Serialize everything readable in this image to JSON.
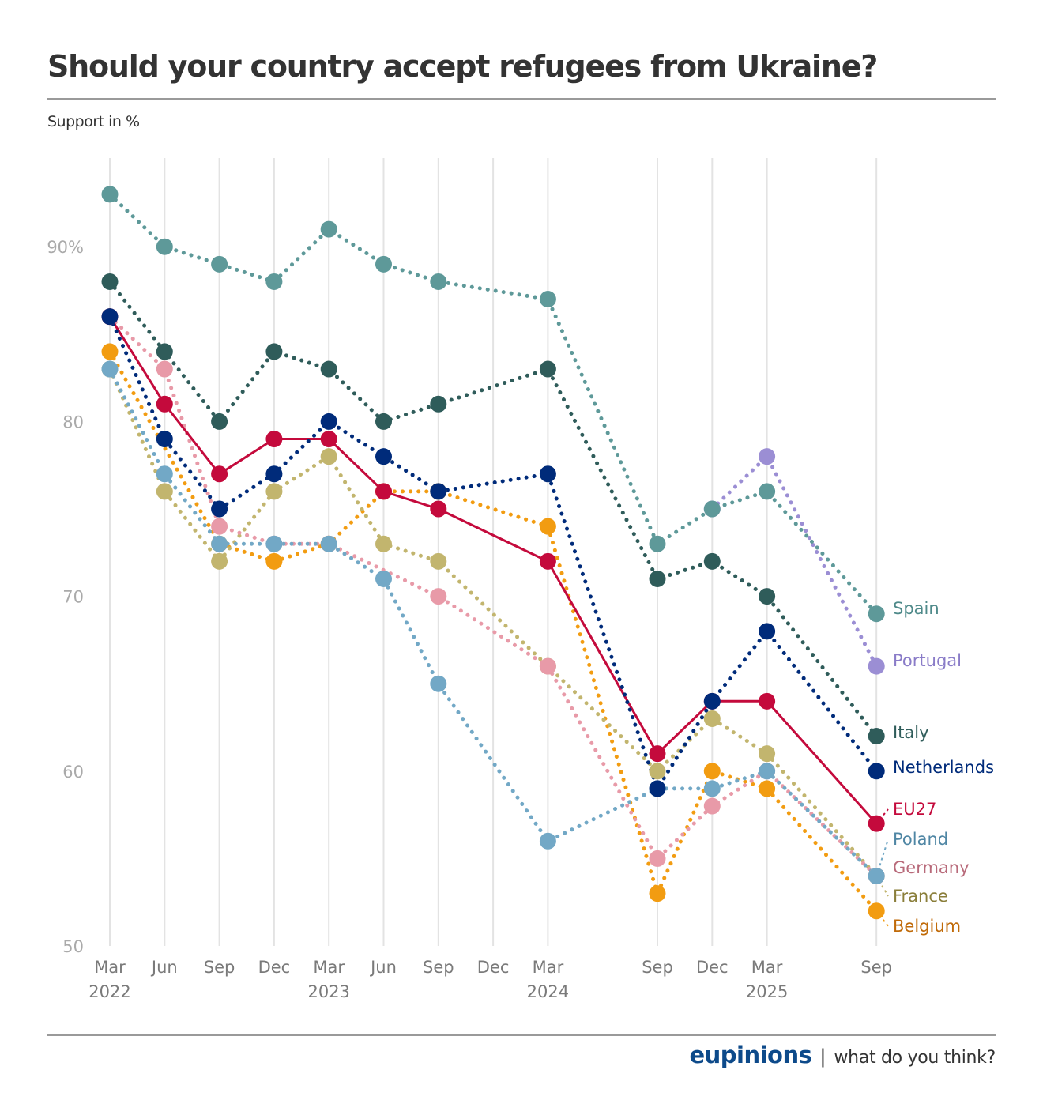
{
  "header": {
    "title": "Should your country accept refugees from Ukraine?",
    "subtitle": "Support in %"
  },
  "footer": {
    "brand": "eupinions",
    "separator": "|",
    "tagline": "what do you think?"
  },
  "chart_data": {
    "type": "line",
    "title": "Should your country accept refugees from Ukraine?",
    "ylabel": "Support in %",
    "xlabel": "",
    "ylim": [
      50,
      95
    ],
    "yticks": [
      {
        "value": 50,
        "label": "50"
      },
      {
        "value": 60,
        "label": "60"
      },
      {
        "value": 70,
        "label": "70"
      },
      {
        "value": 80,
        "label": "80"
      },
      {
        "value": 90,
        "label": "90%"
      }
    ],
    "grid": "vertical",
    "legend": "direct-labels-right",
    "x": [
      {
        "key": "2022-03",
        "q": 0,
        "month": "Mar",
        "year": "2022"
      },
      {
        "key": "2022-06",
        "q": 1,
        "month": "Jun",
        "year": ""
      },
      {
        "key": "2022-09",
        "q": 2,
        "month": "Sep",
        "year": ""
      },
      {
        "key": "2022-12",
        "q": 3,
        "month": "Dec",
        "year": ""
      },
      {
        "key": "2023-03",
        "q": 4,
        "month": "Mar",
        "year": "2023"
      },
      {
        "key": "2023-06",
        "q": 5,
        "month": "Jun",
        "year": ""
      },
      {
        "key": "2023-09",
        "q": 6,
        "month": "Sep",
        "year": ""
      },
      {
        "key": "2023-12",
        "q": 7,
        "month": "Dec",
        "year": ""
      },
      {
        "key": "2024-03",
        "q": 8,
        "month": "Mar",
        "year": "2024"
      },
      {
        "key": "2024-09",
        "q": 10,
        "month": "Sep",
        "year": ""
      },
      {
        "key": "2024-12",
        "q": 11,
        "month": "Dec",
        "year": ""
      },
      {
        "key": "2025-03",
        "q": 12,
        "month": "Mar",
        "year": "2025"
      },
      {
        "key": "2025-09",
        "q": 14,
        "month": "Sep",
        "year": ""
      }
    ],
    "series": [
      {
        "name": "Spain",
        "color": "#5e9999",
        "label_color": "#4f8a8a",
        "style": "dotted",
        "values": [
          93,
          90,
          89,
          88,
          91,
          89,
          88,
          null,
          87,
          73,
          75,
          76,
          69
        ]
      },
      {
        "name": "Portugal",
        "color": "#9b8ed4",
        "label_color": "#8a7cc8",
        "style": "dotted",
        "values": [
          null,
          null,
          null,
          null,
          null,
          null,
          null,
          null,
          null,
          null,
          75,
          78,
          66
        ]
      },
      {
        "name": "Italy",
        "color": "#2f5c5a",
        "label_color": "#2f5c5a",
        "style": "dotted",
        "values": [
          88,
          84,
          80,
          84,
          83,
          80,
          81,
          null,
          83,
          71,
          72,
          70,
          62
        ]
      },
      {
        "name": "Netherlands",
        "color": "#002b7a",
        "label_color": "#002b7a",
        "style": "dotted",
        "values": [
          86,
          79,
          75,
          77,
          80,
          78,
          76,
          null,
          77,
          59,
          64,
          68,
          60
        ]
      },
      {
        "name": "EU27",
        "color": "#c40a3c",
        "label_color": "#c40a3c",
        "style": "solid",
        "values": [
          86,
          81,
          77,
          79,
          79,
          76,
          75,
          null,
          72,
          61,
          64,
          64,
          57
        ]
      },
      {
        "name": "Poland",
        "color": "#72a8c6",
        "label_color": "#4f86a4",
        "style": "dotted",
        "values": [
          83,
          77,
          73,
          73,
          73,
          71,
          65,
          null,
          56,
          59,
          59,
          60,
          54
        ]
      },
      {
        "name": "Germany",
        "color": "#e89aa8",
        "label_color": "#b86a7a",
        "style": "dotted",
        "values": [
          86,
          83,
          74,
          73,
          73,
          null,
          70,
          null,
          66,
          55,
          58,
          60,
          54
        ]
      },
      {
        "name": "France",
        "color": "#c2b56e",
        "label_color": "#8a7e3a",
        "style": "dotted",
        "values": [
          83,
          76,
          72,
          76,
          78,
          73,
          72,
          null,
          66,
          60,
          63,
          61,
          54
        ]
      },
      {
        "name": "Belgium",
        "color": "#f29c11",
        "label_color": "#c06a08",
        "style": "dotted",
        "values": [
          84,
          null,
          73,
          72,
          73,
          76,
          76,
          null,
          74,
          53,
          60,
          59,
          52
        ]
      }
    ]
  }
}
